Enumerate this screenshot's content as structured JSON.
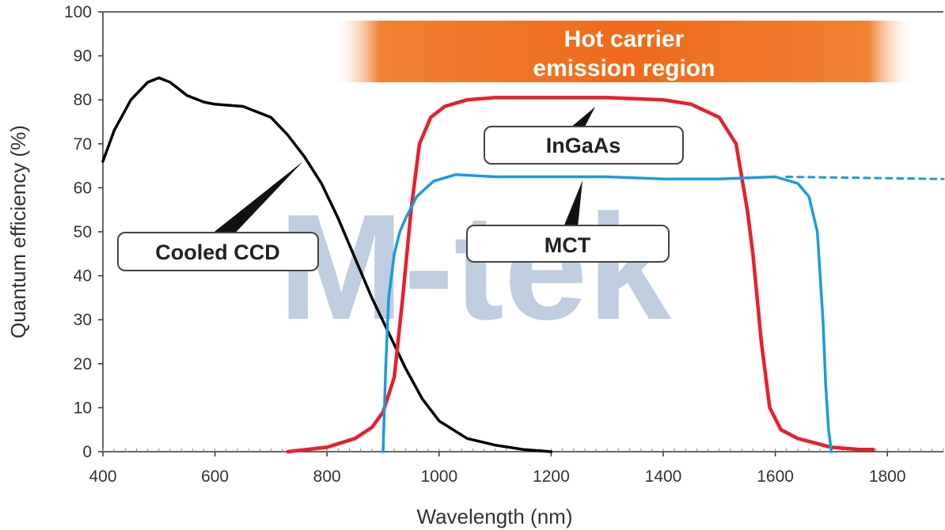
{
  "chart_data": {
    "type": "line",
    "xlabel": "Wavelength (nm)",
    "ylabel": "Quantum efficiency (%)",
    "xlim": [
      400,
      1900
    ],
    "ylim": [
      0,
      100
    ],
    "xticks": [
      400,
      600,
      800,
      1000,
      1200,
      1400,
      1600,
      1800
    ],
    "yticks": [
      0,
      10,
      20,
      30,
      40,
      50,
      60,
      70,
      80,
      90,
      100
    ],
    "grid": false,
    "watermark": "M-tek",
    "band": {
      "label_line1": "Hot carrier",
      "label_line2": "emission region",
      "x_start": 810,
      "x_end": 1850,
      "y_bottom": 84,
      "y_top": 98,
      "color": "#f07a2a"
    },
    "series": [
      {
        "name": "Cooled CCD",
        "color": "#000000",
        "x": [
          400,
          420,
          450,
          480,
          500,
          520,
          550,
          580,
          600,
          650,
          700,
          730,
          760,
          790,
          820,
          850,
          880,
          910,
          940,
          970,
          1000,
          1050,
          1100,
          1150,
          1200
        ],
        "y": [
          66,
          73,
          80,
          84,
          85,
          84,
          81,
          79.5,
          79,
          78.5,
          76,
          72,
          67,
          61,
          53,
          44,
          35,
          27,
          19,
          12,
          7,
          3,
          1.5,
          0.5,
          0
        ]
      },
      {
        "name": "InGaAs",
        "color": "#e8202a",
        "x": [
          730,
          800,
          850,
          880,
          900,
          920,
          935,
          950,
          965,
          985,
          1010,
          1050,
          1100,
          1200,
          1300,
          1400,
          1450,
          1500,
          1530,
          1550,
          1560,
          1575,
          1590,
          1610,
          1640,
          1700,
          1750,
          1775
        ],
        "y": [
          0,
          1,
          3,
          5.5,
          9,
          17,
          35,
          55,
          70,
          76,
          78.5,
          80,
          80.5,
          80.5,
          80.5,
          80,
          79,
          76,
          70,
          55,
          45,
          25,
          10,
          5,
          3,
          1,
          0.5,
          0.5
        ]
      },
      {
        "name": "MCT",
        "color": "#1a9be0",
        "x": [
          900,
          905,
          910,
          920,
          930,
          940,
          960,
          990,
          1030,
          1100,
          1200,
          1300,
          1400,
          1500,
          1600,
          1640,
          1660,
          1675,
          1685,
          1690,
          1695,
          1700
        ],
        "y": [
          0,
          20,
          35,
          45,
          50,
          53,
          58,
          61.5,
          63,
          62.5,
          62.5,
          62.5,
          62,
          62,
          62.5,
          61,
          58,
          50,
          30,
          15,
          5,
          0
        ]
      },
      {
        "name": "MCT (extension)",
        "color": "#1a9be0",
        "dashed": true,
        "x": [
          1620,
          1900
        ],
        "y": [
          62.5,
          62
        ]
      }
    ],
    "annotations": [
      {
        "text": "Cooled CCD",
        "target_series": "Cooled CCD"
      },
      {
        "text": "InGaAs",
        "target_series": "InGaAs"
      },
      {
        "text": "MCT",
        "target_series": "MCT"
      }
    ]
  }
}
